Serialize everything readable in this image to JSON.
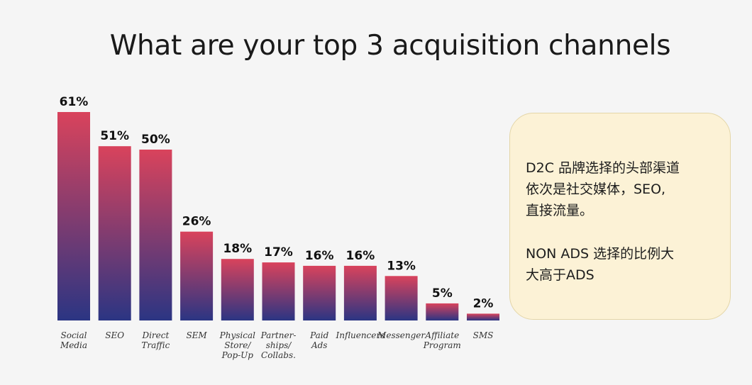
{
  "slide": {
    "title": "What are your top 3 acquisition channels"
  },
  "chart_data": {
    "type": "bar",
    "title": "What are your top 3 acquisition channels",
    "categories": [
      [
        "Social",
        "Media"
      ],
      [
        "SEO"
      ],
      [
        "Direct",
        "Traffic"
      ],
      [
        "SEM"
      ],
      [
        "Physical",
        "Store/",
        "Pop-Up"
      ],
      [
        "Partner-",
        "ships/",
        "Collabs."
      ],
      [
        "Paid",
        "Ads"
      ],
      [
        "Influencers"
      ],
      [
        "Messenger"
      ],
      [
        "Affiliate",
        "Program"
      ],
      [
        "SMS"
      ]
    ],
    "values": [
      61,
      51,
      50,
      26,
      18,
      17,
      16,
      16,
      13,
      5,
      2
    ],
    "value_labels": [
      "61%",
      "51%",
      "50%",
      "26%",
      "18%",
      "17%",
      "16%",
      "16%",
      "13%",
      "5%",
      "2%"
    ],
    "unit": "%",
    "ylim": [
      0,
      61
    ],
    "grid": false,
    "colors": {
      "bar_top": "#d9435c",
      "bar_bottom": "#2b3583"
    }
  },
  "note": {
    "lines_1": [
      "D2C 品牌选择的头部渠道",
      "依次是社交媒体，SEO,",
      "直接流量。"
    ],
    "lines_2": [
      "NON ADS 选择的比例大",
      "大高于ADS"
    ],
    "background": "#fcf2d6"
  }
}
